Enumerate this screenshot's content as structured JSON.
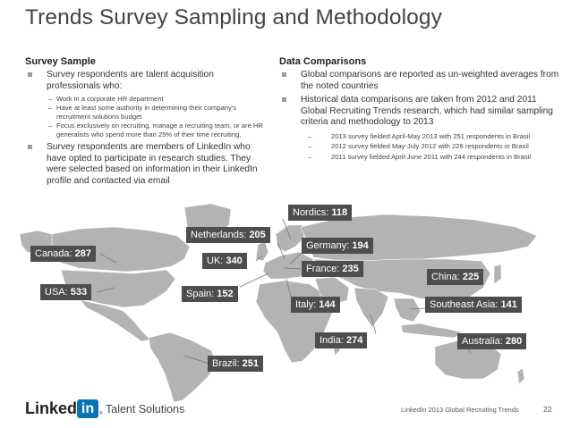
{
  "title": "Trends Survey Sampling and Methodology",
  "survey_sample": {
    "heading": "Survey Sample",
    "bullet1": "Survey respondents are talent acquisition professionals who:",
    "subs": [
      "Work in a corporate HR department",
      "Have at least some authority in determining their company's recruitment solutions budget",
      "Focus exclusively on recruiting, manage a recruiting team, or are HR generalists who spend more than 25% of their time recruiting."
    ],
    "bullet2": "Survey respondents are members of LinkedIn who have opted to participate in research studies. They were selected based on information in their LinkedIn profile and contacted via email"
  },
  "data_comparisons": {
    "heading": "Data Comparisons",
    "bullet1": "Global comparisons are reported as un-weighted averages from the noted countries",
    "bullet2": "Historical data comparisons are taken from 2012 and 2011 Global Recruiting Trends research, which had similar sampling criteria and methodology to 2013",
    "subs": [
      "2013 survey fielded April-May 2013 with 251 respondents in Brasil",
      "2012 survey fielded May-July 2012 with 226 respondents in Brasil",
      "2011 survey fielded April-June 2011 with 244 respondents in Brasil"
    ]
  },
  "countries": [
    {
      "name": "Nordics:",
      "value": "118"
    },
    {
      "name": "Netherlands:",
      "value": "205"
    },
    {
      "name": "Germany:",
      "value": "194"
    },
    {
      "name": "Canada:",
      "value": "287"
    },
    {
      "name": "UK:",
      "value": "340"
    },
    {
      "name": "France:",
      "value": "235"
    },
    {
      "name": "China:",
      "value": "225"
    },
    {
      "name": "USA:",
      "value": "533"
    },
    {
      "name": "Spain:",
      "value": "152"
    },
    {
      "name": "Italy:",
      "value": "144"
    },
    {
      "name": "Southeast Asia:",
      "value": "141"
    },
    {
      "name": "India:",
      "value": "274"
    },
    {
      "name": "Australia:",
      "value": "280"
    },
    {
      "name": "Brazil:",
      "value": "251"
    }
  ],
  "logo": {
    "linked": "Linked",
    "in": "in",
    "tm": "®",
    "talent": "Talent Solutions"
  },
  "footer": "LinkedIn 2013 Global Recruiting Trends",
  "page_number": "22",
  "colors": {
    "label_bg": "#4d4d4d",
    "map": "#b3b3b3",
    "linkedin_blue": "#0a73b3"
  }
}
